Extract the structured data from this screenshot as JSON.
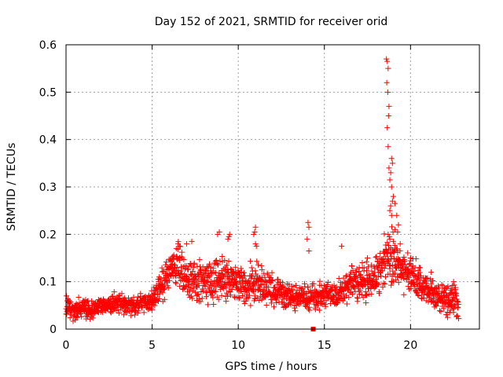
{
  "chart_data": {
    "type": "scatter",
    "title": "Day 152 of 2021, SRMTID for receiver orid",
    "xlabel": "GPS time / hours",
    "ylabel": "SRMTID / TECUs",
    "xlim": [
      0,
      24
    ],
    "ylim": [
      0,
      0.6
    ],
    "xticks": [
      0,
      5,
      10,
      15,
      20
    ],
    "xtick_labels": [
      "0",
      "5",
      "10",
      "15",
      "20"
    ],
    "yticks": [
      0,
      0.1,
      0.2,
      0.3,
      0.4,
      0.5,
      0.6
    ],
    "ytick_labels": [
      "0",
      "0.1",
      "0.2",
      "0.3",
      "0.4",
      "0.5",
      "0.6"
    ],
    "grid": true,
    "marker": "+",
    "color": "#ff0000",
    "series": [
      {
        "name": "SRMTID",
        "profile": [
          [
            0.0,
            0.05,
            0.015
          ],
          [
            0.5,
            0.04,
            0.015
          ],
          [
            1.0,
            0.045,
            0.015
          ],
          [
            1.5,
            0.04,
            0.012
          ],
          [
            2.0,
            0.05,
            0.012
          ],
          [
            2.5,
            0.05,
            0.012
          ],
          [
            3.0,
            0.055,
            0.015
          ],
          [
            3.5,
            0.05,
            0.012
          ],
          [
            4.0,
            0.05,
            0.012
          ],
          [
            4.5,
            0.055,
            0.015
          ],
          [
            5.0,
            0.06,
            0.015
          ],
          [
            5.5,
            0.09,
            0.02
          ],
          [
            6.0,
            0.12,
            0.025
          ],
          [
            6.5,
            0.13,
            0.03
          ],
          [
            7.0,
            0.11,
            0.03
          ],
          [
            7.5,
            0.1,
            0.025
          ],
          [
            8.0,
            0.1,
            0.025
          ],
          [
            8.5,
            0.1,
            0.03
          ],
          [
            9.0,
            0.11,
            0.03
          ],
          [
            9.5,
            0.1,
            0.03
          ],
          [
            10.0,
            0.1,
            0.025
          ],
          [
            10.5,
            0.09,
            0.025
          ],
          [
            11.0,
            0.1,
            0.03
          ],
          [
            11.5,
            0.09,
            0.025
          ],
          [
            12.0,
            0.08,
            0.02
          ],
          [
            12.5,
            0.08,
            0.02
          ],
          [
            13.0,
            0.07,
            0.02
          ],
          [
            13.5,
            0.07,
            0.02
          ],
          [
            14.0,
            0.065,
            0.02
          ],
          [
            14.5,
            0.07,
            0.02
          ],
          [
            15.0,
            0.07,
            0.02
          ],
          [
            15.5,
            0.07,
            0.02
          ],
          [
            16.0,
            0.08,
            0.02
          ],
          [
            16.5,
            0.1,
            0.025
          ],
          [
            17.0,
            0.1,
            0.025
          ],
          [
            17.5,
            0.1,
            0.03
          ],
          [
            18.0,
            0.11,
            0.03
          ],
          [
            18.5,
            0.14,
            0.04
          ],
          [
            19.0,
            0.15,
            0.04
          ],
          [
            19.5,
            0.13,
            0.03
          ],
          [
            20.0,
            0.11,
            0.03
          ],
          [
            20.5,
            0.1,
            0.025
          ],
          [
            21.0,
            0.08,
            0.02
          ],
          [
            21.5,
            0.07,
            0.02
          ],
          [
            22.0,
            0.06,
            0.02
          ],
          [
            22.5,
            0.06,
            0.02
          ],
          [
            22.8,
            0.055,
            0.02
          ]
        ],
        "extra_points": [
          [
            6.4,
            0.17
          ],
          [
            6.5,
            0.18
          ],
          [
            6.6,
            0.175
          ],
          [
            7.0,
            0.18
          ],
          [
            7.3,
            0.185
          ],
          [
            8.8,
            0.2
          ],
          [
            8.9,
            0.205
          ],
          [
            9.4,
            0.19
          ],
          [
            9.5,
            0.2
          ],
          [
            9.45,
            0.195
          ],
          [
            10.9,
            0.2
          ],
          [
            11.0,
            0.215
          ],
          [
            10.95,
            0.205
          ],
          [
            11.0,
            0.18
          ],
          [
            11.05,
            0.175
          ],
          [
            14.05,
            0.225
          ],
          [
            14.1,
            0.215
          ],
          [
            14.0,
            0.19
          ],
          [
            14.1,
            0.165
          ],
          [
            16.0,
            0.175
          ],
          [
            17.2,
            0.14
          ],
          [
            17.5,
            0.15
          ],
          [
            18.6,
            0.57
          ],
          [
            18.65,
            0.565
          ],
          [
            18.7,
            0.55
          ],
          [
            18.62,
            0.52
          ],
          [
            18.68,
            0.5
          ],
          [
            18.75,
            0.47
          ],
          [
            18.72,
            0.45
          ],
          [
            18.65,
            0.425
          ],
          [
            18.7,
            0.385
          ],
          [
            18.75,
            0.34
          ],
          [
            18.9,
            0.36
          ],
          [
            18.95,
            0.35
          ],
          [
            18.85,
            0.33
          ],
          [
            18.8,
            0.315
          ],
          [
            18.9,
            0.3
          ],
          [
            19.0,
            0.28
          ],
          [
            18.95,
            0.27
          ],
          [
            18.85,
            0.26
          ],
          [
            19.1,
            0.265
          ],
          [
            18.8,
            0.25
          ],
          [
            18.9,
            0.24
          ],
          [
            19.2,
            0.24
          ],
          [
            19.3,
            0.22
          ],
          [
            19.1,
            0.21
          ],
          [
            19.25,
            0.205
          ],
          [
            18.7,
            0.2
          ],
          [
            18.8,
            0.19
          ],
          [
            19.0,
            0.185
          ],
          [
            19.4,
            0.18
          ],
          [
            20.0,
            0.15
          ],
          [
            20.5,
            0.13
          ],
          [
            21.2,
            0.12
          ],
          [
            22.5,
            0.1
          ]
        ],
        "special_marker": [
          14.35,
          0.0
        ]
      }
    ]
  }
}
